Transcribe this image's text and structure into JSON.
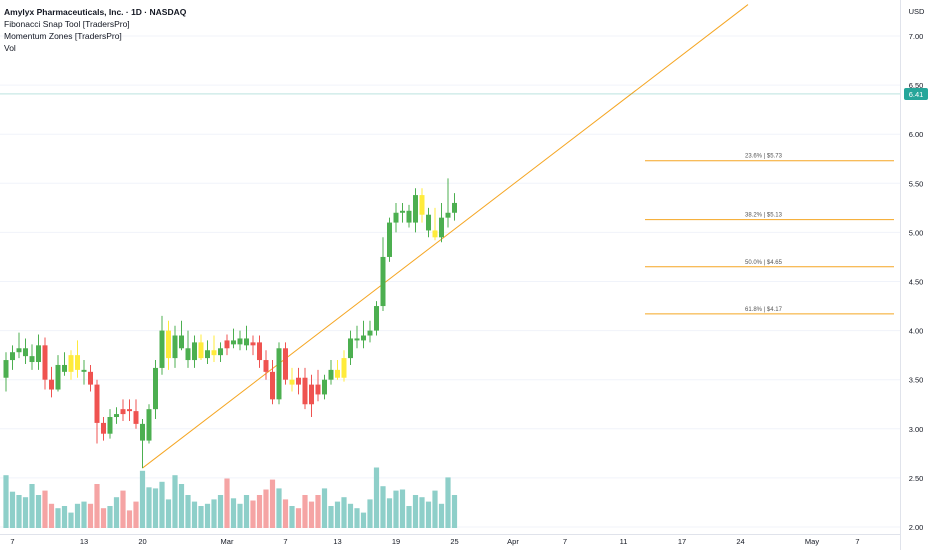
{
  "header": {
    "title": "Amylyx Pharmaceuticals, Inc. · 1D · NASDAQ",
    "indicators": [
      "Fibonacci Snap Tool [TradersPro]",
      "Momentum Zones [TradersPro]",
      "Vol"
    ]
  },
  "currency": "USD",
  "last_price": "6.41",
  "colors": {
    "up": "#4caf50",
    "down": "#ef5350",
    "neutral": "#ffeb3b",
    "vol_up": "#8ecfc9",
    "vol_down": "#f5a4a4",
    "fib": "#f5a623",
    "trend": "#f5a623",
    "price_line": "#26a69a"
  },
  "chart_data": {
    "type": "candlestick",
    "x_range": [
      0,
      137
    ],
    "y_range": [
      1.98,
      7.22
    ],
    "y_ticks": [
      2.0,
      2.5,
      3.0,
      3.5,
      4.0,
      4.5,
      5.0,
      5.5,
      6.0,
      6.5,
      7.0
    ],
    "y_tick_labels": [
      "2.00",
      "2.50",
      "3.00",
      "3.50",
      "4.00",
      "4.50",
      "5.00",
      "5.50",
      "6.00",
      "6.50",
      "7.00"
    ],
    "x_ticks": [
      {
        "x": 1,
        "label": "7"
      },
      {
        "x": 12,
        "label": "13"
      },
      {
        "x": 21,
        "label": "20"
      },
      {
        "x": 34,
        "label": "Mar"
      },
      {
        "x": 43,
        "label": "7"
      },
      {
        "x": 51,
        "label": "13"
      },
      {
        "x": 60,
        "label": "19"
      },
      {
        "x": 69,
        "label": "25"
      },
      {
        "x": 78,
        "label": "Apr"
      },
      {
        "x": 86,
        "label": "7"
      },
      {
        "x": 95,
        "label": "11"
      },
      {
        "x": 104,
        "label": "17"
      },
      {
        "x": 113,
        "label": "24"
      },
      {
        "x": 124,
        "label": "May"
      },
      {
        "x": 131,
        "label": "7"
      }
    ],
    "candles": [
      {
        "o": 3.52,
        "h": 3.78,
        "l": 3.38,
        "c": 3.7,
        "v": 0.48,
        "t": "up"
      },
      {
        "o": 3.7,
        "h": 3.85,
        "l": 3.6,
        "c": 3.78,
        "v": 0.33,
        "t": "up"
      },
      {
        "o": 3.78,
        "h": 3.98,
        "l": 3.72,
        "c": 3.82,
        "v": 0.3,
        "t": "up"
      },
      {
        "o": 3.82,
        "h": 3.92,
        "l": 3.66,
        "c": 3.74,
        "v": 0.28,
        "t": "up"
      },
      {
        "o": 3.74,
        "h": 3.86,
        "l": 3.6,
        "c": 3.68,
        "v": 0.4,
        "t": "up"
      },
      {
        "o": 3.68,
        "h": 3.96,
        "l": 3.6,
        "c": 3.85,
        "v": 0.3,
        "t": "up"
      },
      {
        "o": 3.85,
        "h": 3.93,
        "l": 3.4,
        "c": 3.5,
        "v": 0.34,
        "t": "down"
      },
      {
        "o": 3.5,
        "h": 3.63,
        "l": 3.32,
        "c": 3.4,
        "v": 0.22,
        "t": "down"
      },
      {
        "o": 3.4,
        "h": 3.75,
        "l": 3.38,
        "c": 3.65,
        "v": 0.18,
        "t": "up"
      },
      {
        "o": 3.65,
        "h": 3.78,
        "l": 3.54,
        "c": 3.58,
        "v": 0.2,
        "t": "up"
      },
      {
        "o": 3.58,
        "h": 3.8,
        "l": 3.5,
        "c": 3.75,
        "v": 0.14,
        "t": "neutral"
      },
      {
        "o": 3.75,
        "h": 3.9,
        "l": 3.52,
        "c": 3.6,
        "v": 0.22,
        "t": "neutral"
      },
      {
        "o": 3.6,
        "h": 3.7,
        "l": 3.45,
        "c": 3.58,
        "v": 0.24,
        "t": "up"
      },
      {
        "o": 3.58,
        "h": 3.65,
        "l": 3.38,
        "c": 3.45,
        "v": 0.22,
        "t": "down"
      },
      {
        "o": 3.45,
        "h": 3.5,
        "l": 2.85,
        "c": 3.06,
        "v": 0.4,
        "t": "down"
      },
      {
        "o": 3.06,
        "h": 3.12,
        "l": 2.88,
        "c": 2.95,
        "v": 0.18,
        "t": "down"
      },
      {
        "o": 2.95,
        "h": 3.2,
        "l": 2.9,
        "c": 3.12,
        "v": 0.2,
        "t": "up"
      },
      {
        "o": 3.12,
        "h": 3.22,
        "l": 3.05,
        "c": 3.15,
        "v": 0.28,
        "t": "up"
      },
      {
        "o": 3.15,
        "h": 3.3,
        "l": 3.08,
        "c": 3.2,
        "v": 0.34,
        "t": "down"
      },
      {
        "o": 3.2,
        "h": 3.3,
        "l": 3.08,
        "c": 3.18,
        "v": 0.16,
        "t": "down"
      },
      {
        "o": 3.18,
        "h": 3.3,
        "l": 3.0,
        "c": 3.05,
        "v": 0.24,
        "t": "down"
      },
      {
        "o": 3.05,
        "h": 3.1,
        "l": 2.6,
        "c": 2.88,
        "v": 0.52,
        "t": "up"
      },
      {
        "o": 2.88,
        "h": 3.25,
        "l": 2.85,
        "c": 3.2,
        "v": 0.37,
        "t": "up"
      },
      {
        "o": 3.2,
        "h": 3.7,
        "l": 3.1,
        "c": 3.62,
        "v": 0.36,
        "t": "up"
      },
      {
        "o": 3.62,
        "h": 4.15,
        "l": 3.55,
        "c": 4.0,
        "v": 0.42,
        "t": "up"
      },
      {
        "o": 4.0,
        "h": 4.1,
        "l": 3.6,
        "c": 3.72,
        "v": 0.26,
        "t": "neutral"
      },
      {
        "o": 3.72,
        "h": 4.05,
        "l": 3.62,
        "c": 3.95,
        "v": 0.48,
        "t": "up"
      },
      {
        "o": 3.95,
        "h": 4.1,
        "l": 3.8,
        "c": 3.82,
        "v": 0.4,
        "t": "up"
      },
      {
        "o": 3.82,
        "h": 4.0,
        "l": 3.62,
        "c": 3.7,
        "v": 0.3,
        "t": "up"
      },
      {
        "o": 3.7,
        "h": 3.95,
        "l": 3.62,
        "c": 3.88,
        "v": 0.24,
        "t": "up"
      },
      {
        "o": 3.88,
        "h": 3.96,
        "l": 3.7,
        "c": 3.72,
        "v": 0.2,
        "t": "neutral"
      },
      {
        "o": 3.72,
        "h": 3.9,
        "l": 3.66,
        "c": 3.8,
        "v": 0.22,
        "t": "up"
      },
      {
        "o": 3.8,
        "h": 3.95,
        "l": 3.68,
        "c": 3.75,
        "v": 0.26,
        "t": "neutral"
      },
      {
        "o": 3.75,
        "h": 3.88,
        "l": 3.68,
        "c": 3.82,
        "v": 0.3,
        "t": "up"
      },
      {
        "o": 3.82,
        "h": 3.96,
        "l": 3.75,
        "c": 3.9,
        "v": 0.45,
        "t": "down"
      },
      {
        "o": 3.9,
        "h": 4.02,
        "l": 3.82,
        "c": 3.86,
        "v": 0.27,
        "t": "up"
      },
      {
        "o": 3.86,
        "h": 4.0,
        "l": 3.8,
        "c": 3.92,
        "v": 0.22,
        "t": "up"
      },
      {
        "o": 3.92,
        "h": 4.05,
        "l": 3.8,
        "c": 3.85,
        "v": 0.3,
        "t": "up"
      },
      {
        "o": 3.85,
        "h": 3.95,
        "l": 3.75,
        "c": 3.88,
        "v": 0.25,
        "t": "down"
      },
      {
        "o": 3.88,
        "h": 3.95,
        "l": 3.62,
        "c": 3.7,
        "v": 0.3,
        "t": "down"
      },
      {
        "o": 3.7,
        "h": 3.8,
        "l": 3.5,
        "c": 3.58,
        "v": 0.35,
        "t": "down"
      },
      {
        "o": 3.58,
        "h": 3.7,
        "l": 3.25,
        "c": 3.3,
        "v": 0.44,
        "t": "down"
      },
      {
        "o": 3.3,
        "h": 3.88,
        "l": 3.25,
        "c": 3.82,
        "v": 0.36,
        "t": "up"
      },
      {
        "o": 3.82,
        "h": 3.88,
        "l": 3.45,
        "c": 3.5,
        "v": 0.26,
        "t": "down"
      },
      {
        "o": 3.5,
        "h": 3.62,
        "l": 3.38,
        "c": 3.45,
        "v": 0.2,
        "t": "neutral"
      },
      {
        "o": 3.45,
        "h": 3.62,
        "l": 3.35,
        "c": 3.52,
        "v": 0.18,
        "t": "down"
      },
      {
        "o": 3.52,
        "h": 3.62,
        "l": 3.2,
        "c": 3.25,
        "v": 0.3,
        "t": "down"
      },
      {
        "o": 3.25,
        "h": 3.55,
        "l": 3.12,
        "c": 3.45,
        "v": 0.24,
        "t": "down"
      },
      {
        "o": 3.45,
        "h": 3.6,
        "l": 3.28,
        "c": 3.35,
        "v": 0.3,
        "t": "down"
      },
      {
        "o": 3.35,
        "h": 3.55,
        "l": 3.3,
        "c": 3.5,
        "v": 0.36,
        "t": "up"
      },
      {
        "o": 3.5,
        "h": 3.7,
        "l": 3.45,
        "c": 3.6,
        "v": 0.2,
        "t": "up"
      },
      {
        "o": 3.6,
        "h": 3.7,
        "l": 3.5,
        "c": 3.52,
        "v": 0.24,
        "t": "neutral"
      },
      {
        "o": 3.52,
        "h": 3.8,
        "l": 3.48,
        "c": 3.72,
        "v": 0.28,
        "t": "neutral"
      },
      {
        "o": 3.72,
        "h": 4.0,
        "l": 3.65,
        "c": 3.92,
        "v": 0.22,
        "t": "up"
      },
      {
        "o": 3.92,
        "h": 4.05,
        "l": 3.82,
        "c": 3.9,
        "v": 0.18,
        "t": "up"
      },
      {
        "o": 3.9,
        "h": 4.1,
        "l": 3.82,
        "c": 3.95,
        "v": 0.14,
        "t": "up"
      },
      {
        "o": 3.95,
        "h": 4.1,
        "l": 3.88,
        "c": 4.0,
        "v": 0.26,
        "t": "up"
      },
      {
        "o": 4.0,
        "h": 4.3,
        "l": 3.95,
        "c": 4.25,
        "v": 0.55,
        "t": "up"
      },
      {
        "o": 4.25,
        "h": 4.95,
        "l": 4.2,
        "c": 4.75,
        "v": 0.38,
        "t": "up"
      },
      {
        "o": 4.75,
        "h": 5.15,
        "l": 4.7,
        "c": 5.1,
        "v": 0.27,
        "t": "up"
      },
      {
        "o": 5.1,
        "h": 5.3,
        "l": 5.0,
        "c": 5.2,
        "v": 0.34,
        "t": "up"
      },
      {
        "o": 5.2,
        "h": 5.3,
        "l": 5.1,
        "c": 5.22,
        "v": 0.35,
        "t": "up"
      },
      {
        "o": 5.22,
        "h": 5.28,
        "l": 5.05,
        "c": 5.1,
        "v": 0.2,
        "t": "up"
      },
      {
        "o": 5.1,
        "h": 5.45,
        "l": 5.0,
        "c": 5.38,
        "v": 0.3,
        "t": "up"
      },
      {
        "o": 5.38,
        "h": 5.45,
        "l": 5.1,
        "c": 5.18,
        "v": 0.28,
        "t": "neutral"
      },
      {
        "o": 5.18,
        "h": 5.25,
        "l": 4.95,
        "c": 5.02,
        "v": 0.24,
        "t": "up"
      },
      {
        "o": 5.02,
        "h": 5.25,
        "l": 4.92,
        "c": 4.95,
        "v": 0.34,
        "t": "neutral"
      },
      {
        "o": 4.95,
        "h": 5.3,
        "l": 4.9,
        "c": 5.15,
        "v": 0.22,
        "t": "up"
      },
      {
        "o": 5.15,
        "h": 5.55,
        "l": 5.05,
        "c": 5.2,
        "v": 0.46,
        "t": "up"
      },
      {
        "o": 5.2,
        "h": 5.4,
        "l": 5.12,
        "c": 5.3,
        "v": 0.3,
        "t": "up"
      }
    ],
    "fib_levels": [
      {
        "label": "23.6% | $5.73",
        "price": 5.73
      },
      {
        "label": "38.2% | $5.13",
        "price": 5.13
      },
      {
        "label": "50.0% | $4.65",
        "price": 4.65
      },
      {
        "label": "61.8% | $4.17",
        "price": 4.17
      }
    ]
  }
}
